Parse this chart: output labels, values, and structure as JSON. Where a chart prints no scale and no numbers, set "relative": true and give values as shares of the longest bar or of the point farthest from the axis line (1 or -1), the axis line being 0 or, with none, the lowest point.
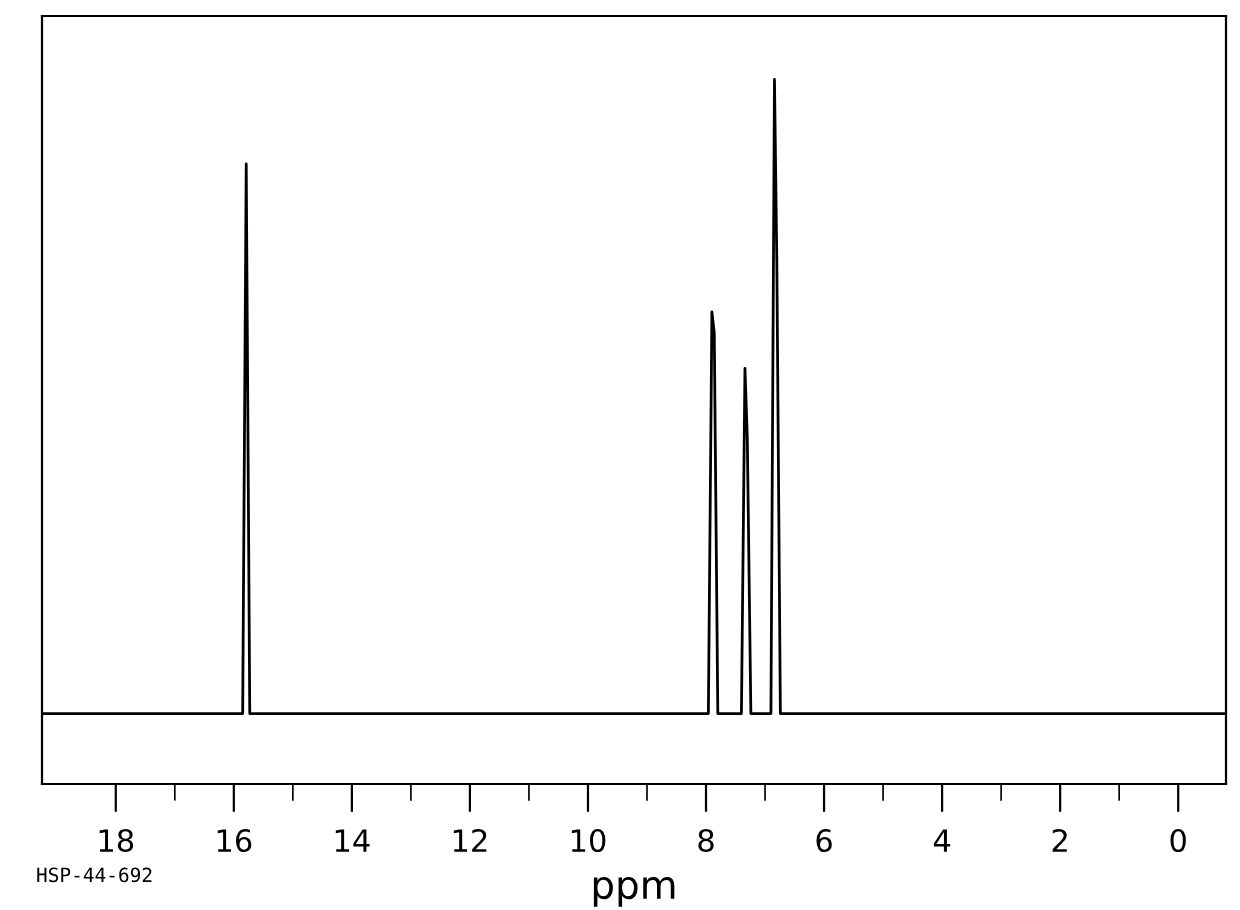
{
  "chart_data": {
    "type": "line",
    "relative": true,
    "xlabel": "ppm",
    "annotations": [
      "HSP-44-692"
    ],
    "x": [
      19.25,
      15.85,
      15.79,
      15.73,
      7.96,
      7.9,
      7.86,
      7.8,
      7.4,
      7.34,
      7.3,
      7.24,
      6.9,
      6.84,
      6.8,
      6.74,
      -0.81
    ],
    "series": [
      {
        "color": "#000000",
        "values": [
          0.1,
          0.1,
          0.88,
          0.1,
          0.1,
          0.67,
          0.64,
          0.1,
          0.1,
          0.59,
          0.49,
          0.1,
          0.1,
          1.0,
          0.74,
          0.1,
          0.1
        ]
      }
    ],
    "xlim": [
      19.25,
      -0.81
    ],
    "xticks": [
      18,
      16,
      14,
      12,
      10,
      8,
      6,
      4,
      2,
      0
    ],
    "tick_labels": "x",
    "grid": false,
    "legend": false,
    "marker": "none",
    "line_style": "solid"
  }
}
